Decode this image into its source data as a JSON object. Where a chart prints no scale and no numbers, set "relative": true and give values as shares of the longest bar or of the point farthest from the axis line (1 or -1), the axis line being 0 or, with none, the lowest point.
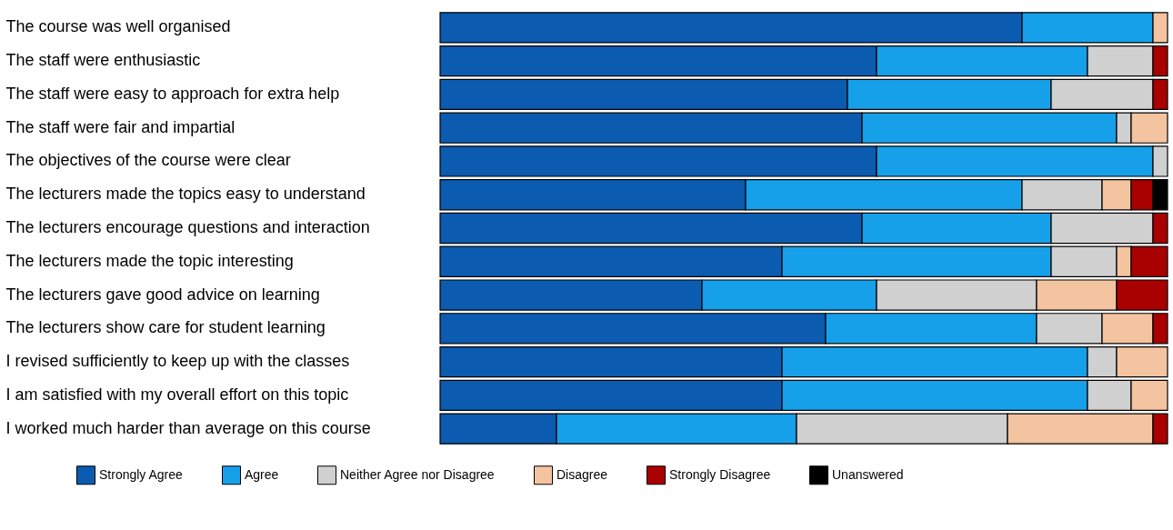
{
  "chart_data": {
    "type": "bar",
    "orientation": "horizontal",
    "stacked": true,
    "relative": true,
    "legend": "bottom",
    "categories": [
      "The course was well organised",
      "The staff were enthusiastic",
      "The staff were easy to approach for extra help",
      "The staff were fair and impartial",
      "The objectives of the course were clear",
      "The lecturers made the topics easy to understand",
      "The lecturers encourage questions and interaction",
      "The lecturers made the topic interesting",
      "The lecturers gave good advice on learning",
      "The lecturers show care for student learning",
      "I revised sufficiently to keep up with the classes",
      "I am satisfied with my overall effort on this topic",
      "I worked much harder than average on this course"
    ],
    "series": [
      {
        "name": "Strongly Agree",
        "color": "#0b5bb0",
        "values": [
          0.8,
          0.6,
          0.56,
          0.58,
          0.6,
          0.42,
          0.58,
          0.47,
          0.36,
          0.53,
          0.47,
          0.47,
          0.16
        ]
      },
      {
        "name": "Agree",
        "color": "#16a0ea",
        "values": [
          0.18,
          0.29,
          0.28,
          0.35,
          0.38,
          0.38,
          0.26,
          0.37,
          0.24,
          0.29,
          0.42,
          0.42,
          0.33
        ]
      },
      {
        "name": "Neither Agree nor Disagree",
        "color": "#d0d0d0",
        "values": [
          null,
          0.09,
          0.14,
          0.02,
          0.02,
          0.11,
          0.14,
          0.09,
          0.22,
          0.09,
          0.04,
          0.06,
          0.29
        ]
      },
      {
        "name": "Disagree",
        "color": "#f4c3a0",
        "values": [
          0.02,
          null,
          null,
          0.05,
          null,
          0.04,
          null,
          0.02,
          0.11,
          0.07,
          0.07,
          0.05,
          0.2
        ]
      },
      {
        "name": "Strongly Disagree",
        "color": "#a90000",
        "values": [
          null,
          0.02,
          0.02,
          null,
          null,
          0.03,
          0.02,
          0.05,
          0.07,
          0.02,
          null,
          null,
          0.02
        ]
      },
      {
        "name": "Unanswered",
        "color": "#000000",
        "values": [
          null,
          null,
          null,
          null,
          null,
          0.02,
          null,
          null,
          null,
          null,
          null,
          null,
          null
        ]
      }
    ]
  }
}
